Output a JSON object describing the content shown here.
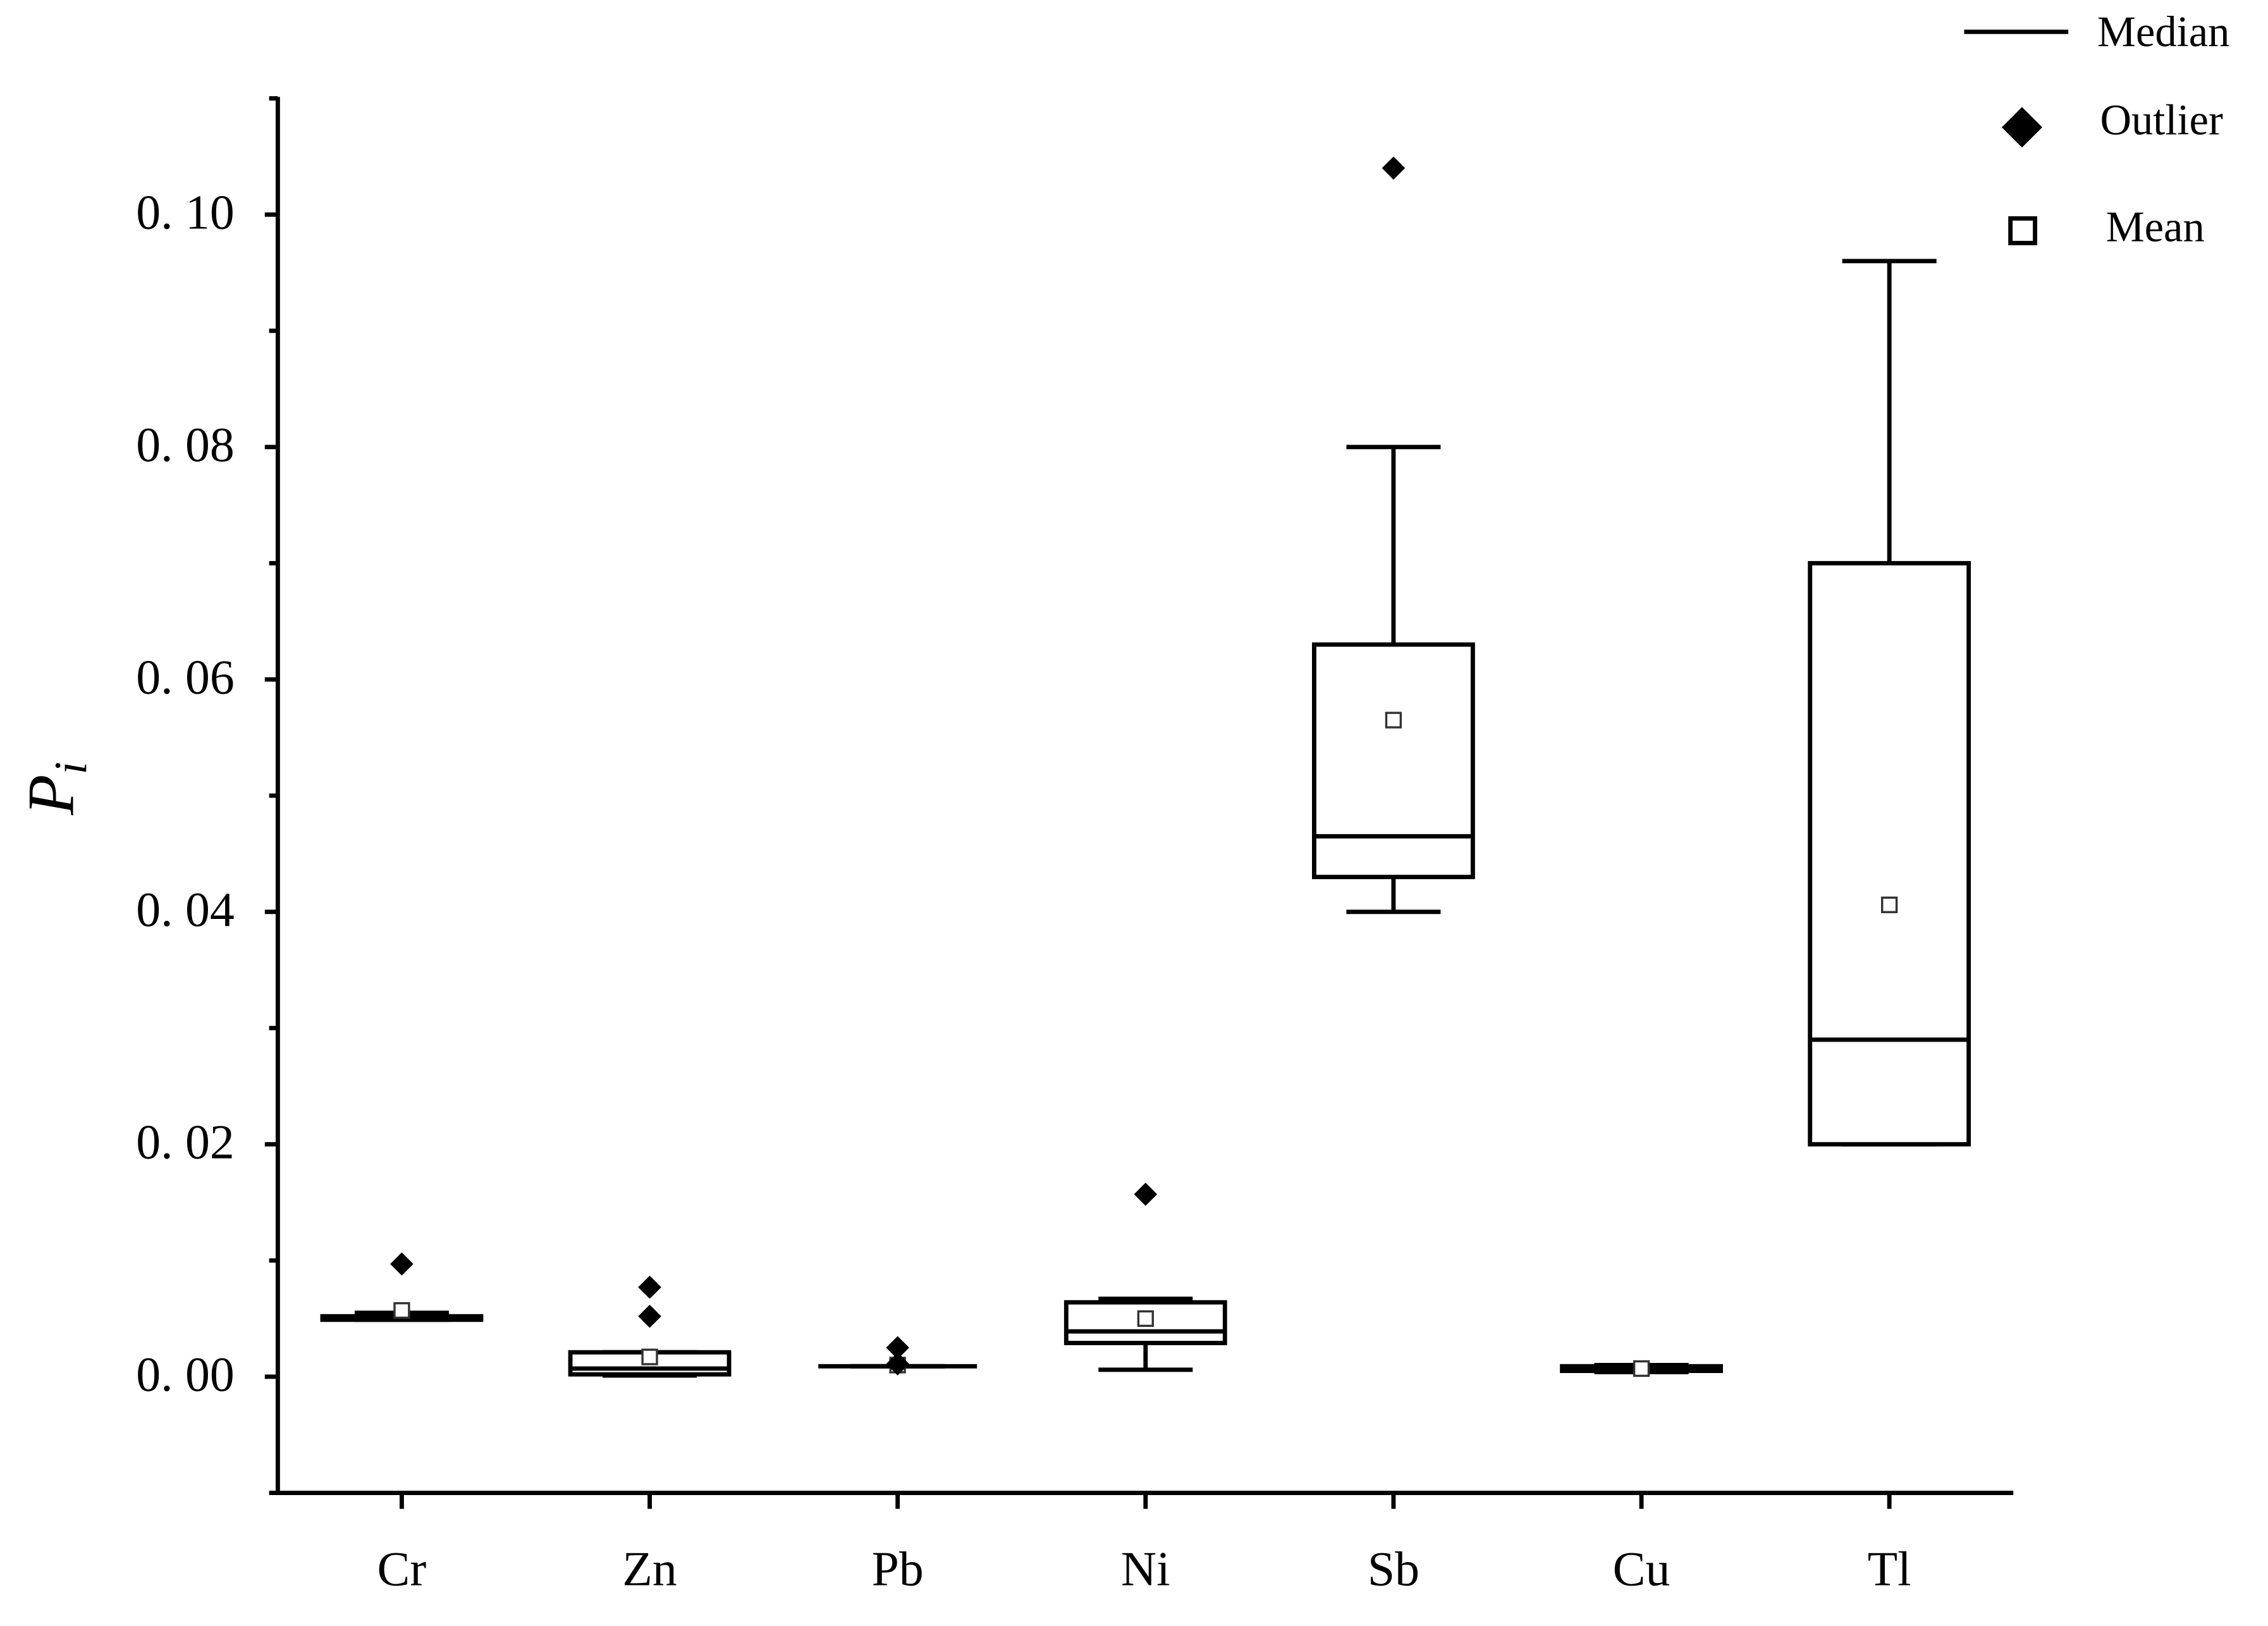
{
  "chart_data": {
    "type": "box",
    "ylabel": {
      "base": "P",
      "sub": "i"
    },
    "categories": [
      "Cr",
      "Zn",
      "Pb",
      "Ni",
      "Sb",
      "Cu",
      "Tl"
    ],
    "boxes": [
      {
        "low": 0.0049,
        "q1": 0.0049,
        "median": 0.005,
        "q3": 0.0052,
        "high": 0.0055,
        "mean": 0.0057,
        "outliers": [
          0.0097
        ]
      },
      {
        "low": 0.0001,
        "q1": 0.0002,
        "median": 0.0007,
        "q3": 0.0021,
        "high": 0.0021,
        "mean": 0.0017,
        "outliers": [
          0.0077,
          0.0052
        ]
      },
      {
        "low": 0.0009,
        "q1": 0.0009,
        "median": 0.0009,
        "q3": 0.0009,
        "high": 0.0009,
        "mean": 0.001,
        "outliers": [
          0.0025,
          0.0011
        ]
      },
      {
        "low": 0.0006,
        "q1": 0.0029,
        "median": 0.0039,
        "q3": 0.0064,
        "high": 0.0067,
        "mean": 0.005,
        "outliers": [
          0.0157
        ]
      },
      {
        "low": 0.04,
        "q1": 0.043,
        "median": 0.0465,
        "q3": 0.063,
        "high": 0.08,
        "mean": 0.0565,
        "outliers": [
          0.104
        ]
      },
      {
        "low": 0.0004,
        "q1": 0.0005,
        "median": 0.0007,
        "q3": 0.0009,
        "high": 0.001,
        "mean": 0.0007,
        "outliers": []
      },
      {
        "low": 0.02,
        "q1": 0.02,
        "median": 0.029,
        "q3": 0.07,
        "high": 0.096,
        "mean": 0.0406,
        "outliers": []
      }
    ],
    "color": "#000000",
    "ylim": [
      -0.01,
      0.11
    ],
    "yticks": [
      {
        "value": 0,
        "label": "0. 00"
      },
      {
        "value": 0.02,
        "label": "0. 02"
      },
      {
        "value": 0.04,
        "label": "0. 04"
      },
      {
        "value": 0.06,
        "label": "0. 06"
      },
      {
        "value": 0.08,
        "label": "0. 08"
      },
      {
        "value": 0.1,
        "label": "0. 10"
      }
    ],
    "yticks_minor": [
      -0.01,
      0.01,
      0.03,
      0.05,
      0.07,
      0.09,
      0.11
    ],
    "legend": {
      "median": "Median",
      "outlier": "Outlier",
      "mean": "Mean"
    }
  }
}
